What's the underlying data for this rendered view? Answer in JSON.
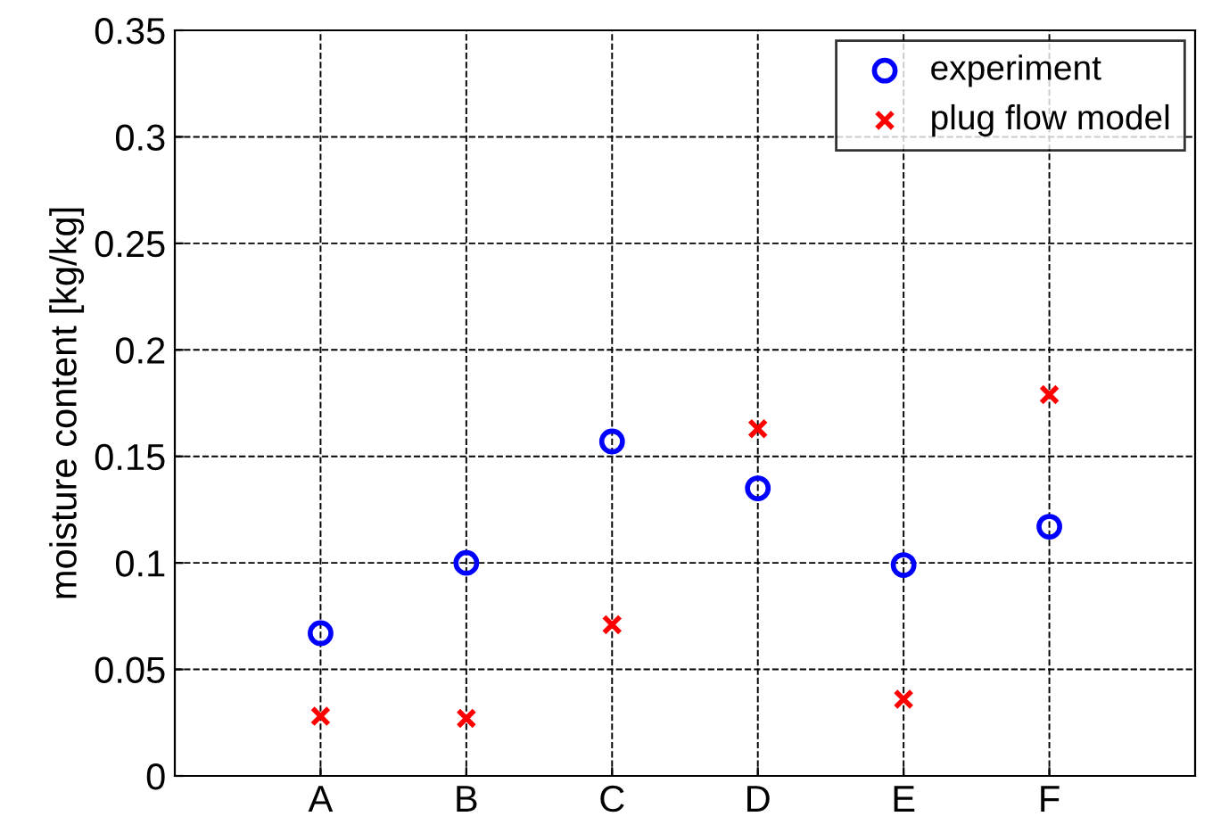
{
  "chart_data": {
    "type": "scatter",
    "ylabel": "moisture content [kg/kg]",
    "categories": [
      "A",
      "B",
      "C",
      "D",
      "E",
      "F"
    ],
    "series": [
      {
        "name": "experiment",
        "color": "#0000ff",
        "marker": "circle",
        "values": [
          0.067,
          0.1,
          0.157,
          0.135,
          0.099,
          0.117
        ]
      },
      {
        "name": "plug flow model",
        "color": "#ff0000",
        "marker": "cross",
        "values": [
          0.028,
          0.027,
          0.071,
          0.163,
          0.036,
          0.179
        ]
      }
    ],
    "ylim": [
      0,
      0.35
    ],
    "yticks": [
      0,
      0.05,
      0.1,
      0.15,
      0.2,
      0.25,
      0.3,
      0.35
    ],
    "grid": true,
    "legend": "top right"
  }
}
